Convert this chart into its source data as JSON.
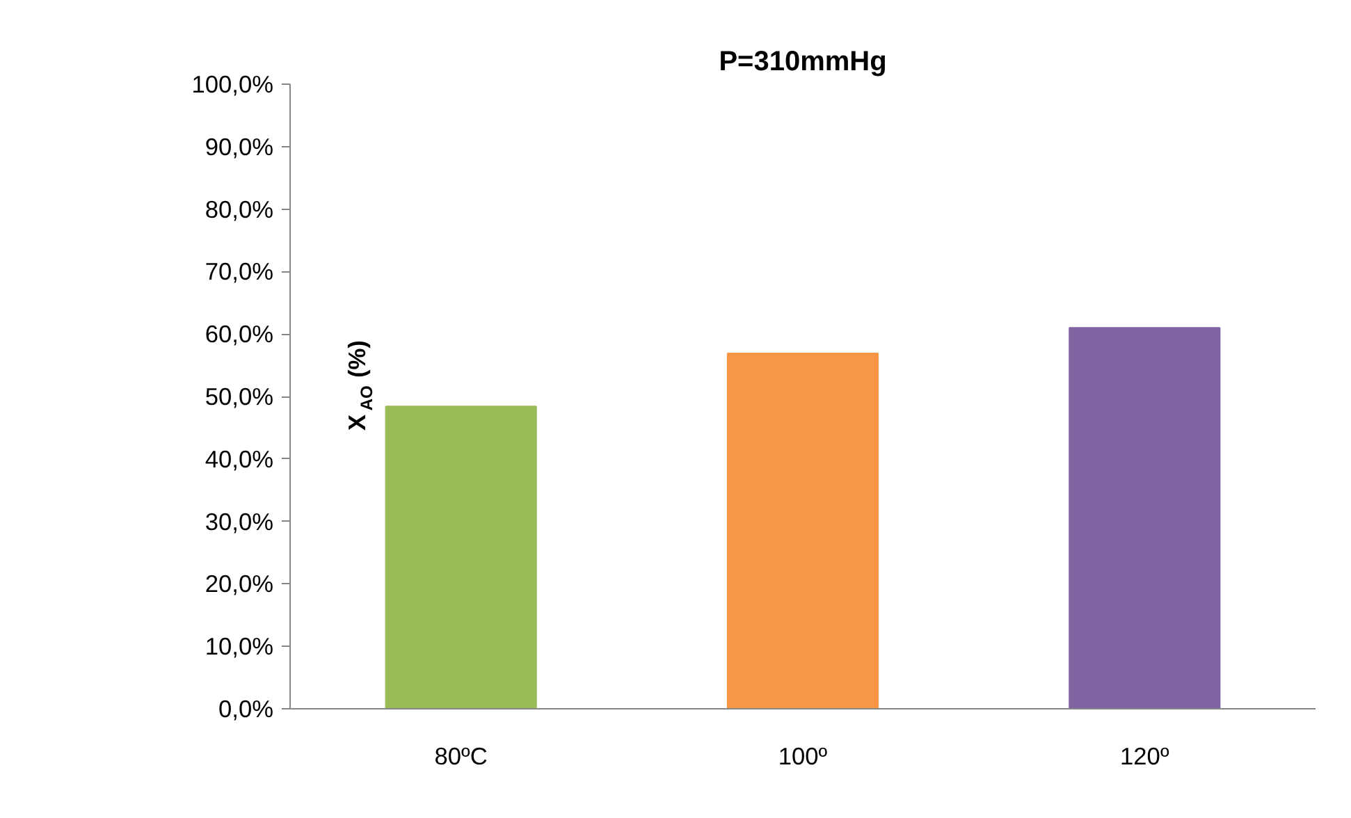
{
  "chart_data": {
    "type": "bar",
    "title": "P=310mmHg",
    "ylabel": "X$_{AO}$ (%)",
    "categories": [
      "80ºC",
      "100º",
      "120º"
    ],
    "values": [
      48.4,
      56.9,
      61.0
    ],
    "colors": [
      "#9bbb59",
      "#f79646",
      "#8064a2"
    ],
    "ylim": [
      0,
      100
    ],
    "yticks": [
      {
        "value": 0,
        "label": "0,0%"
      },
      {
        "value": 10,
        "label": "10,0%"
      },
      {
        "value": 20,
        "label": "20,0%"
      },
      {
        "value": 30,
        "label": "30,0%"
      },
      {
        "value": 40,
        "label": "40,0%"
      },
      {
        "value": 50,
        "label": "50,0%"
      },
      {
        "value": 60,
        "label": "60,0%"
      },
      {
        "value": 70,
        "label": "70,0%"
      },
      {
        "value": 80,
        "label": "80,0%"
      },
      {
        "value": 90,
        "label": "90,0%"
      },
      {
        "value": 100,
        "label": "100,0%"
      }
    ],
    "grid": false
  }
}
